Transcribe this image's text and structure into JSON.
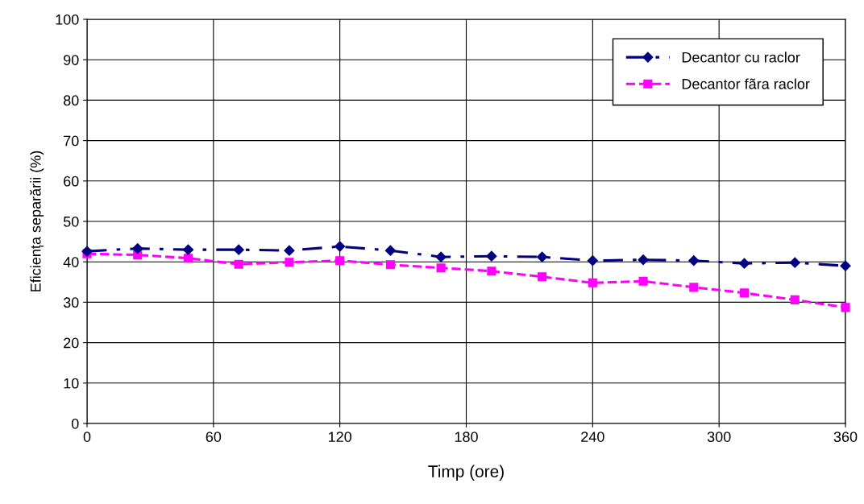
{
  "chart_data": {
    "type": "line",
    "xlabel": "Timp (ore)",
    "ylabel": "Eficiența separării (%)",
    "x": [
      0,
      24,
      48,
      72,
      96,
      120,
      144,
      168,
      192,
      216,
      240,
      264,
      288,
      312,
      336,
      360
    ],
    "series": [
      {
        "name": "Decantor cu raclor",
        "color": "#000080",
        "marker": "diamond",
        "line_style": "dashdot",
        "values": [
          42.6,
          43.3,
          43.0,
          43.0,
          42.8,
          43.8,
          42.8,
          41.2,
          41.4,
          41.2,
          40.3,
          40.5,
          40.3,
          39.6,
          39.8,
          39.0
        ]
      },
      {
        "name": "Decantor fãra raclor",
        "color": "#ff00ff",
        "marker": "square",
        "line_style": "dashed",
        "values": [
          42.0,
          41.7,
          40.9,
          39.4,
          39.9,
          40.3,
          39.3,
          38.5,
          37.7,
          36.3,
          34.8,
          35.2,
          33.7,
          32.3,
          30.6,
          28.7
        ]
      }
    ],
    "xlim": [
      0,
      360
    ],
    "xticks": [
      0,
      60,
      120,
      180,
      240,
      300,
      360
    ],
    "ylim": [
      0,
      100
    ],
    "yticks": [
      0,
      10,
      20,
      30,
      40,
      50,
      60,
      70,
      80,
      90,
      100
    ],
    "grid": true,
    "legend": "top right"
  }
}
